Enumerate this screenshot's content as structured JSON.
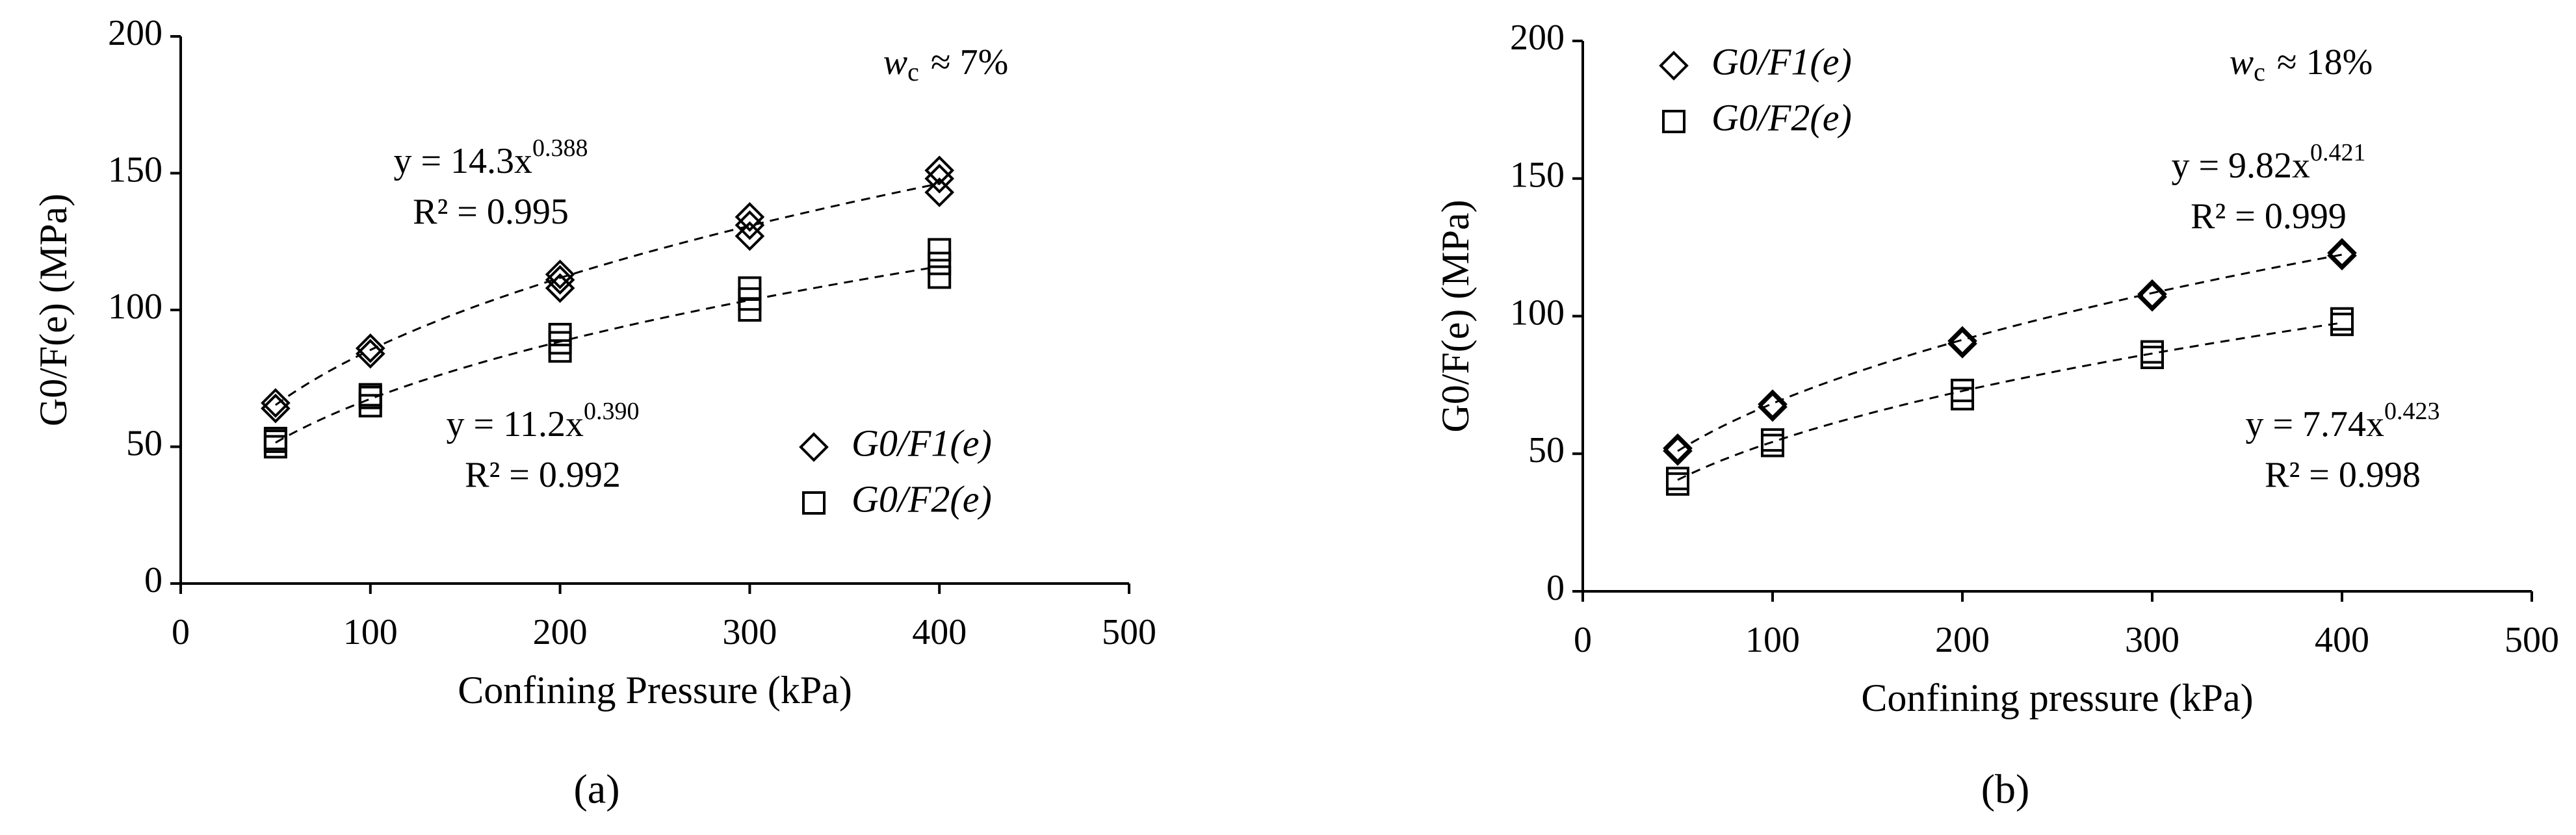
{
  "chart_data": [
    {
      "type": "scatter",
      "panel_label": "(a)",
      "x_label": "Confining Pressure (kPa)",
      "y_label": "G0/F(e) (MPa)",
      "xlim": [
        0,
        500
      ],
      "xticks": [
        0,
        100,
        200,
        300,
        400,
        500
      ],
      "ylim": [
        0,
        200
      ],
      "yticks": [
        0,
        50,
        100,
        150,
        200
      ],
      "legend": "lower right",
      "annotation": {
        "var": "w",
        "sub": "c",
        "text": "≈ 7%"
      },
      "series": [
        {
          "name": "G0/F1(e)",
          "marker": "diamond",
          "color": "#000000",
          "x": [
            50,
            50,
            100,
            100,
            200,
            200,
            200,
            300,
            300,
            300,
            400,
            400,
            400
          ],
          "values": [
            64,
            66,
            84,
            86,
            108,
            111,
            113,
            127,
            131,
            134,
            143,
            148,
            151
          ]
        },
        {
          "name": "G0/F2(e)",
          "marker": "square",
          "color": "#000000",
          "x": [
            50,
            50,
            50,
            100,
            100,
            100,
            200,
            200,
            200,
            300,
            300,
            300,
            400,
            400,
            400
          ],
          "values": [
            50,
            52,
            53,
            65,
            68,
            69,
            85,
            88,
            91,
            100,
            104,
            108,
            112,
            117,
            122
          ]
        }
      ],
      "fits": [
        {
          "lhs": "y =",
          "a": 14.3,
          "var": "x",
          "b": 0.388,
          "r2": "R² = 0.995",
          "xrange": [
            50,
            400
          ]
        },
        {
          "lhs": "y =",
          "a": 11.2,
          "var": "x",
          "b": 0.39,
          "b_label": "0.390",
          "r2": "R² = 0.992",
          "xrange": [
            50,
            400
          ]
        }
      ]
    },
    {
      "type": "scatter",
      "panel_label": "(b)",
      "x_label": "Confining pressure (kPa)",
      "y_label": "G0/F(e) (MPa)",
      "xlim": [
        0,
        500
      ],
      "xticks": [
        0,
        100,
        200,
        300,
        400,
        500
      ],
      "ylim": [
        0,
        200
      ],
      "yticks": [
        0,
        50,
        100,
        150,
        200
      ],
      "legend": "upper left",
      "annotation": {
        "var": "w",
        "sub": "c",
        "text": "≈ 18%"
      },
      "series": [
        {
          "name": "G0/F1(e)",
          "marker": "diamond",
          "color": "#000000",
          "x": [
            50,
            50,
            100,
            100,
            200,
            200,
            300,
            300,
            400,
            400
          ],
          "values": [
            51,
            52,
            67,
            68,
            90,
            91,
            107,
            108,
            122,
            123
          ]
        },
        {
          "name": "G0/F2(e)",
          "marker": "square",
          "color": "#000000",
          "x": [
            50,
            50,
            100,
            100,
            200,
            200,
            300,
            300,
            400,
            400
          ],
          "values": [
            39,
            41,
            53,
            55,
            70,
            73,
            85,
            87,
            97,
            99
          ]
        }
      ],
      "fits": [
        {
          "lhs": "y =",
          "a": 9.82,
          "var": "x",
          "b": 0.421,
          "r2": "R² = 0.999",
          "xrange": [
            50,
            400
          ]
        },
        {
          "lhs": "y =",
          "a": 7.74,
          "var": "x",
          "b": 0.423,
          "r2": "R² = 0.998",
          "xrange": [
            50,
            400
          ]
        }
      ]
    }
  ]
}
